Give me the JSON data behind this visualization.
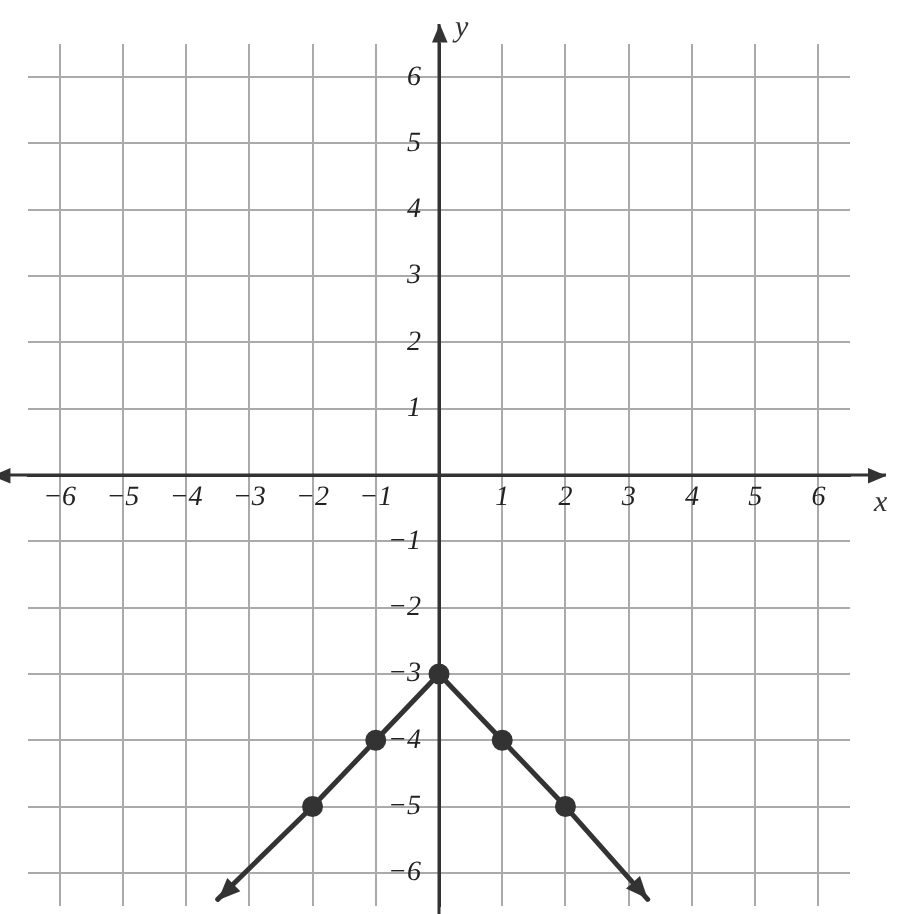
{
  "chart_data": {
    "type": "line",
    "xlabel": "x",
    "ylabel": "y",
    "x": [
      -3.5,
      -2,
      -1,
      0,
      1,
      2,
      3.3
    ],
    "series": [
      {
        "color": "#333333",
        "values": [
          -6.4,
          -5,
          -4,
          -3,
          -4,
          -5,
          -6.4
        ]
      }
    ],
    "xlim": [
      -6.5,
      6.5
    ],
    "ylim": [
      -6.5,
      6.5
    ],
    "xticks": [
      -6,
      -5,
      -4,
      -3,
      -2,
      -1,
      {
        "value": 0,
        "label": null
      },
      1,
      2,
      3,
      4,
      5,
      6
    ],
    "yticks": [
      -6,
      -5,
      -4,
      -3,
      -2,
      -1,
      {
        "value": 0,
        "label": null
      },
      1,
      2,
      3,
      4,
      5,
      6
    ],
    "grid": true,
    "marker": "circle",
    "line_style": "solid",
    "legend": false
  }
}
